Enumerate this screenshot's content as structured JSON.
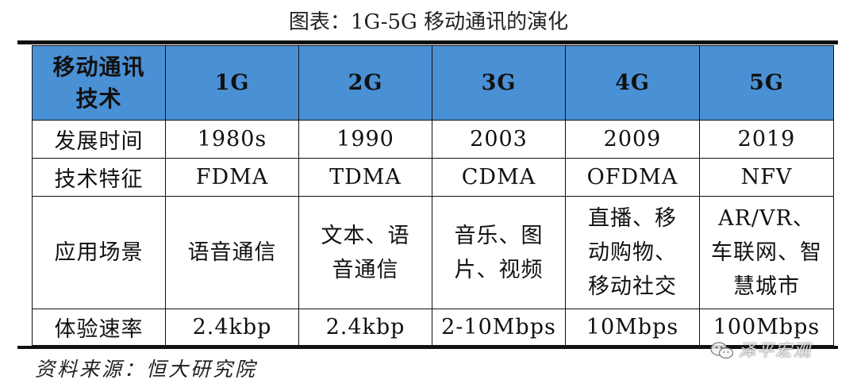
{
  "title": "图表：1G-5G 移动通讯的演化",
  "header": {
    "rowhead": "移动通讯技术",
    "columns": [
      "1G",
      "2G",
      "3G",
      "4G",
      "5G"
    ]
  },
  "rows": [
    {
      "label": "发展时间",
      "values": [
        "1980s",
        "1990",
        "2003",
        "2009",
        "2019"
      ]
    },
    {
      "label": "技术特征",
      "values": [
        "FDMA",
        "TDMA",
        "CDMA",
        "OFDMA",
        "NFV"
      ]
    },
    {
      "label": "应用场景",
      "values": [
        "语音通信",
        "文本、语音通信",
        "音乐、图片、视频",
        "直播、移动购物、移动社交",
        "AR/VR、车联网、智慧城市"
      ]
    },
    {
      "label": "体验速率",
      "values": [
        "2.4kbp",
        "2.4kbp",
        "2-10Mbps",
        "10Mbps",
        "100Mbps"
      ]
    }
  ],
  "source": "资料来源：恒大研究院",
  "watermark": {
    "text": "泽平宏观",
    "icon": "wechat-icon"
  },
  "colors": {
    "header_bg": "#4a90d4",
    "rule": "#111111"
  }
}
